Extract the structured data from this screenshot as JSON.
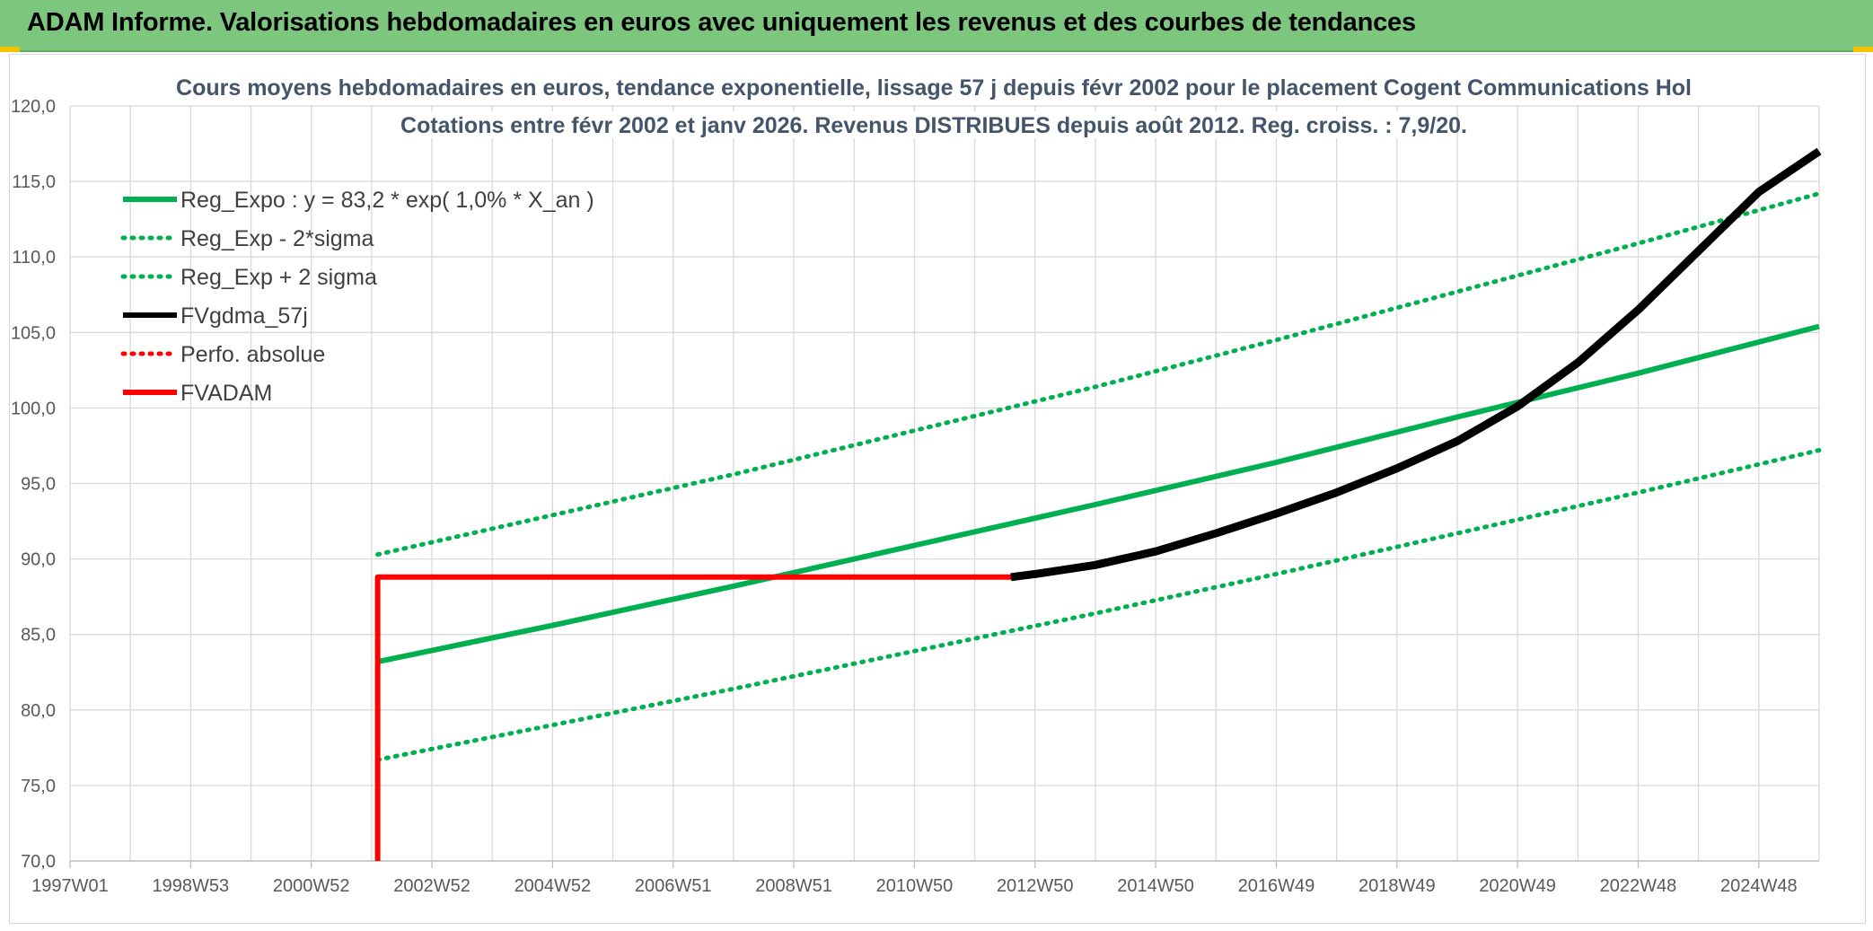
{
  "banner": {
    "title": "ADAM Informe. Valorisations hebdomadaires en euros avec uniquement les revenus et des courbes de tendances"
  },
  "colors": {
    "banner": "#7dc67e",
    "green": "#00b050",
    "red": "#ff0000",
    "black": "#000000",
    "grid": "#d9d9d9",
    "title": "#44546a"
  },
  "chart_data": {
    "type": "line",
    "title_lines": [
      "Cours moyens hebdomadaires en euros, tendance exponentielle, lissage 57 j depuis févr 2002 pour le placement Cogent Communications Hol",
      "Cotations entre févr 2002 et janv 2026. Revenus DISTRIBUES depuis août 2012. Reg. croiss. : 7,9/20."
    ],
    "ylim": [
      70,
      120
    ],
    "y_ticks": [
      "70,0",
      "75,0",
      "80,0",
      "85,0",
      "90,0",
      "95,0",
      "100,0",
      "105,0",
      "110,0",
      "115,0",
      "120,0"
    ],
    "x_ticks": [
      "1997W01",
      "1998W53",
      "2000W52",
      "2002W52",
      "2004W52",
      "2006W51",
      "2008W51",
      "2010W50",
      "2012W50",
      "2014W50",
      "2016W49",
      "2018W49",
      "2020W49",
      "2022W48",
      "2024W48"
    ],
    "xlim": [
      1997.0,
      2026.0
    ],
    "grid": true,
    "legend_position": "top-left",
    "series": [
      {
        "name": "Reg_Expo : y = 83,2 * exp( 1,0% *  X_an )",
        "color": "#00b050",
        "style": "solid",
        "x": [
          2002.1,
          2005.0,
          2008.0,
          2011.0,
          2014.0,
          2017.0,
          2020.0,
          2023.0,
          2026.0
        ],
        "y": [
          83.2,
          85.6,
          88.2,
          90.9,
          93.6,
          96.4,
          99.4,
          102.3,
          105.4
        ]
      },
      {
        "name": "Reg_Exp - 2*sigma",
        "color": "#00b050",
        "style": "dotted",
        "x": [
          2002.1,
          2005.0,
          2008.0,
          2011.0,
          2014.0,
          2017.0,
          2020.0,
          2023.0,
          2026.0
        ],
        "y": [
          76.7,
          79.0,
          81.4,
          83.9,
          86.4,
          89.0,
          91.7,
          94.4,
          97.2
        ]
      },
      {
        "name": "Reg_Exp + 2 sigma",
        "color": "#00b050",
        "style": "dotted",
        "x": [
          2002.1,
          2005.0,
          2008.0,
          2011.0,
          2014.0,
          2017.0,
          2020.0,
          2023.0,
          2026.0
        ],
        "y": [
          90.3,
          92.9,
          95.6,
          98.5,
          101.4,
          104.5,
          107.7,
          110.9,
          114.2
        ]
      },
      {
        "name": "FVgdma_57j",
        "color": "#000000",
        "style": "solid",
        "x": [
          2012.6,
          2013.0,
          2014.0,
          2015.0,
          2016.0,
          2017.0,
          2018.0,
          2019.0,
          2020.0,
          2021.0,
          2022.0,
          2023.0,
          2024.0,
          2025.0,
          2026.0
        ],
        "y": [
          88.8,
          89.0,
          89.6,
          90.5,
          91.7,
          93.0,
          94.4,
          96.0,
          97.8,
          100.1,
          103.0,
          106.5,
          110.4,
          114.3,
          117.0
        ]
      },
      {
        "name": "Perfo. absolue",
        "color": "#ff0000",
        "style": "dotted",
        "x": [],
        "y": []
      },
      {
        "name": "FVADAM",
        "color": "#ff0000",
        "style": "solid",
        "x": [
          2002.1,
          2002.1,
          2012.6,
          2013.0,
          2014.0,
          2015.0,
          2016.0,
          2017.0,
          2018.0,
          2019.0,
          2020.0,
          2021.0,
          2022.0,
          2023.0,
          2024.0,
          2025.0,
          2026.0
        ],
        "y": [
          70.0,
          88.8,
          88.8,
          89.0,
          89.6,
          90.5,
          91.7,
          93.0,
          94.4,
          96.0,
          97.8,
          100.1,
          103.0,
          106.5,
          110.4,
          114.3,
          117.0
        ]
      }
    ]
  }
}
